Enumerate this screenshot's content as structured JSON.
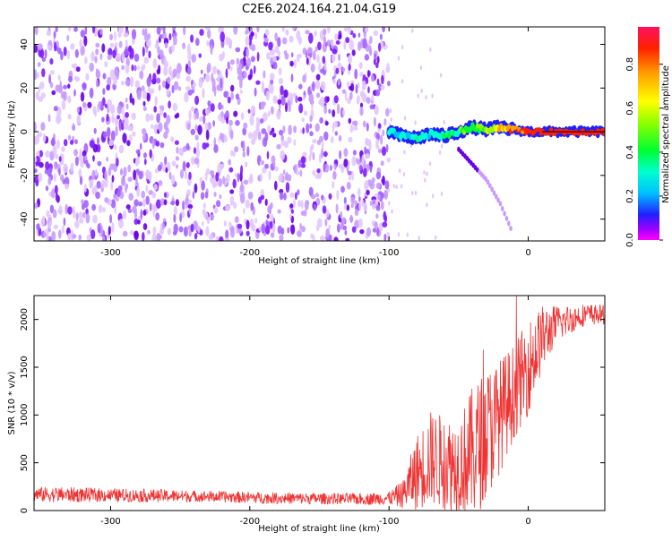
{
  "title": "C2E6.2024.164.21.04.G19",
  "chart_data": [
    {
      "type": "heatmap",
      "xlabel": "Height of straight line (km)",
      "ylabel": "Frequency (Hz)",
      "xlim": [
        -355,
        55
      ],
      "ylim": [
        -50,
        48
      ],
      "xticks": [
        -300,
        -200,
        -100,
        0
      ],
      "yticks": [
        40,
        20,
        0,
        -20,
        -40
      ],
      "noise_region_x": [
        -355,
        -100
      ],
      "signal_trace": {
        "x": [
          -100,
          -90,
          -80,
          -70,
          -60,
          -50,
          -40,
          -30,
          -20,
          -10,
          0,
          10,
          20,
          30,
          40,
          50,
          55
        ],
        "freq": [
          0,
          -2,
          -3,
          -1,
          -2,
          0,
          2,
          1,
          2,
          1,
          0,
          0,
          0,
          0,
          0,
          0,
          0
        ],
        "amplitude": [
          0.35,
          0.3,
          0.35,
          0.35,
          0.4,
          0.45,
          0.5,
          0.55,
          0.7,
          0.8,
          0.85,
          0.9,
          0.9,
          0.9,
          0.9,
          0.9,
          0.9
        ]
      },
      "secondary_trace": {
        "x": [
          -50,
          -40,
          -30,
          -20,
          -12
        ],
        "freq": [
          -8,
          -15,
          -22,
          -33,
          -45
        ]
      },
      "colorbar": {
        "label": "Normalized spectral amplitude",
        "ticks": [
          "0.0",
          "0.2",
          "0.4",
          "0.6",
          "0.8"
        ],
        "range": [
          0,
          0.97
        ]
      }
    },
    {
      "type": "line",
      "xlabel": "Height of straight line (km)",
      "ylabel": "SNR (10 * v/v)",
      "xlim": [
        -355,
        55
      ],
      "ylim": [
        0,
        2250
      ],
      "xticks": [
        -300,
        -200,
        -100,
        0
      ],
      "yticks": [
        2000,
        1500,
        1000,
        500,
        0
      ],
      "series": [
        {
          "color": "#ee3333",
          "x": [
            -355,
            -330,
            -300,
            -270,
            -240,
            -210,
            -180,
            -150,
            -120,
            -100,
            -90,
            -80,
            -70,
            -60,
            -50,
            -40,
            -30,
            -20,
            -10,
            0,
            10,
            20,
            30,
            40,
            55
          ],
          "y": [
            170,
            165,
            160,
            155,
            150,
            140,
            130,
            125,
            120,
            130,
            170,
            400,
            550,
            500,
            480,
            600,
            800,
            1000,
            1250,
            1500,
            1800,
            1950,
            2000,
            2050,
            2050
          ],
          "spread": [
            80,
            80,
            70,
            70,
            60,
            60,
            60,
            60,
            60,
            70,
            150,
            400,
            500,
            500,
            500,
            700,
            700,
            600,
            500,
            500,
            350,
            200,
            150,
            120,
            100
          ]
        }
      ]
    }
  ],
  "colors": {
    "line": "#ee3333",
    "noise": [
      "#e2c8ff",
      "#c79bff",
      "#a463ff",
      "#7f1cff",
      "#6a00e6"
    ]
  }
}
